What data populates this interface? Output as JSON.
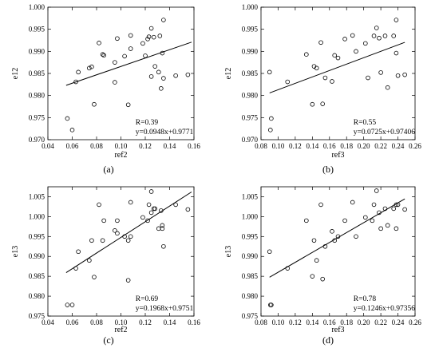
{
  "chart_data": [
    {
      "type": "scatter",
      "panel": "(a)",
      "xlabel": "ref2",
      "ylabel": "e12",
      "xlim": [
        0.04,
        0.16
      ],
      "ylim": [
        0.97,
        1.0
      ],
      "xticks": [
        "0.04",
        "0.06",
        "0.08",
        "0.10",
        "0.12",
        "0.14",
        "0.16"
      ],
      "yticks": [
        "0.970",
        "0.975",
        "0.980",
        "0.985",
        "0.990",
        "0.995",
        "1.000"
      ],
      "annotation_r": "R=0.39",
      "annotation_eq": "y=0.0948x+0.9771",
      "fit": {
        "slope": 0.0948,
        "intercept": 0.9771,
        "x_range": [
          0.055,
          0.158
        ]
      },
      "points": [
        [
          0.056,
          0.9748
        ],
        [
          0.06,
          0.9722
        ],
        [
          0.063,
          0.9831
        ],
        [
          0.065,
          0.9853
        ],
        [
          0.074,
          0.9862
        ],
        [
          0.076,
          0.9865
        ],
        [
          0.078,
          0.978
        ],
        [
          0.082,
          0.9919
        ],
        [
          0.085,
          0.9893
        ],
        [
          0.086,
          0.9891
        ],
        [
          0.095,
          0.983
        ],
        [
          0.095,
          0.9875
        ],
        [
          0.097,
          0.9929
        ],
        [
          0.103,
          0.9889
        ],
        [
          0.106,
          0.9779
        ],
        [
          0.108,
          0.9936
        ],
        [
          0.108,
          0.9906
        ],
        [
          0.118,
          0.9918
        ],
        [
          0.12,
          0.989
        ],
        [
          0.122,
          0.9928
        ],
        [
          0.123,
          0.9933
        ],
        [
          0.125,
          0.9952
        ],
        [
          0.125,
          0.9843
        ],
        [
          0.127,
          0.9932
        ],
        [
          0.128,
          0.9866
        ],
        [
          0.131,
          0.9853
        ],
        [
          0.132,
          0.9935
        ],
        [
          0.133,
          0.9816
        ],
        [
          0.134,
          0.9896
        ],
        [
          0.135,
          0.9971
        ],
        [
          0.135,
          0.9839
        ],
        [
          0.145,
          0.9845
        ],
        [
          0.155,
          0.9847
        ]
      ]
    },
    {
      "type": "scatter",
      "panel": "(b)",
      "xlabel": "ref3",
      "ylabel": "e12",
      "xlim": [
        0.08,
        0.26
      ],
      "ylim": [
        0.97,
        1.0
      ],
      "xticks": [
        "0.08",
        "0.10",
        "0.12",
        "0.14",
        "0.16",
        "0.18",
        "0.20",
        "0.22",
        "0.24",
        "0.26"
      ],
      "yticks": [
        "0.970",
        "0.975",
        "0.980",
        "0.985",
        "0.990",
        "0.995",
        "1.000"
      ],
      "annotation_r": "R=0.55",
      "annotation_eq": "y=0.0725x+0.97406",
      "fit": {
        "slope": 0.0725,
        "intercept": 0.97406,
        "x_range": [
          0.09,
          0.248
        ]
      },
      "points": [
        [
          0.09,
          0.9853
        ],
        [
          0.092,
          0.9748
        ],
        [
          0.091,
          0.9722
        ],
        [
          0.111,
          0.9831
        ],
        [
          0.133,
          0.9893
        ],
        [
          0.14,
          0.978
        ],
        [
          0.142,
          0.9866
        ],
        [
          0.145,
          0.9862
        ],
        [
          0.15,
          0.992
        ],
        [
          0.152,
          0.9781
        ],
        [
          0.155,
          0.984
        ],
        [
          0.163,
          0.9832
        ],
        [
          0.166,
          0.9891
        ],
        [
          0.17,
          0.9885
        ],
        [
          0.178,
          0.9928
        ],
        [
          0.187,
          0.9936
        ],
        [
          0.191,
          0.99
        ],
        [
          0.202,
          0.9918
        ],
        [
          0.205,
          0.984
        ],
        [
          0.212,
          0.9935
        ],
        [
          0.215,
          0.9953
        ],
        [
          0.218,
          0.993
        ],
        [
          0.22,
          0.9852
        ],
        [
          0.225,
          0.9935
        ],
        [
          0.228,
          0.9818
        ],
        [
          0.235,
          0.9935
        ],
        [
          0.238,
          0.9971
        ],
        [
          0.238,
          0.9896
        ],
        [
          0.24,
          0.9845
        ],
        [
          0.248,
          0.9847
        ]
      ]
    },
    {
      "type": "scatter",
      "panel": "(c)",
      "xlabel": "ref2",
      "ylabel": "e13",
      "xlim": [
        0.04,
        0.16
      ],
      "ylim": [
        0.975,
        1.0075
      ],
      "xticks": [
        "0.04",
        "0.06",
        "0.08",
        "0.10",
        "0.12",
        "0.14",
        "0.16"
      ],
      "yticks": [
        "0.975",
        "0.980",
        "0.985",
        "0.990",
        "0.995",
        "1.000",
        "1.005"
      ],
      "annotation_r": "R=0.69",
      "annotation_eq": "y=0.1968x+0.9751",
      "fit": {
        "slope": 0.1968,
        "intercept": 0.9751,
        "x_range": [
          0.055,
          0.158
        ]
      },
      "points": [
        [
          0.056,
          0.9778
        ],
        [
          0.06,
          0.9778
        ],
        [
          0.063,
          0.987
        ],
        [
          0.065,
          0.9912
        ],
        [
          0.074,
          0.989
        ],
        [
          0.076,
          0.994
        ],
        [
          0.078,
          0.9848
        ],
        [
          0.082,
          1.003
        ],
        [
          0.085,
          0.994
        ],
        [
          0.086,
          0.999
        ],
        [
          0.095,
          0.9965
        ],
        [
          0.097,
          0.999
        ],
        [
          0.097,
          0.9958
        ],
        [
          0.103,
          0.995
        ],
        [
          0.106,
          0.984
        ],
        [
          0.106,
          0.994
        ],
        [
          0.108,
          1.0036
        ],
        [
          0.108,
          0.995
        ],
        [
          0.118,
          0.9998
        ],
        [
          0.122,
          0.999
        ],
        [
          0.123,
          1.003
        ],
        [
          0.125,
          1.0063
        ],
        [
          0.125,
          1.001
        ],
        [
          0.127,
          1.002
        ],
        [
          0.128,
          1.002
        ],
        [
          0.131,
          0.997
        ],
        [
          0.133,
          1.0015
        ],
        [
          0.134,
          0.997
        ],
        [
          0.134,
          0.9978
        ],
        [
          0.135,
          0.9925
        ],
        [
          0.145,
          1.003
        ],
        [
          0.155,
          1.0018
        ]
      ]
    },
    {
      "type": "scatter",
      "panel": "(d)",
      "xlabel": "ref3",
      "ylabel": "e13",
      "xlim": [
        0.08,
        0.26
      ],
      "ylim": [
        0.975,
        1.0075
      ],
      "xticks": [
        "0.08",
        "0.10",
        "0.12",
        "0.14",
        "0.16",
        "0.18",
        "0.20",
        "0.22",
        "0.24",
        "0.26"
      ],
      "yticks": [
        "0.975",
        "0.980",
        "0.985",
        "0.990",
        "0.995",
        "1.000",
        "1.005"
      ],
      "annotation_r": "R=0.78",
      "annotation_eq": "y=0.1246x+0.97356",
      "fit": {
        "slope": 0.1246,
        "intercept": 0.97356,
        "x_range": [
          0.09,
          0.248
        ]
      },
      "points": [
        [
          0.09,
          0.9912
        ],
        [
          0.091,
          0.9778
        ],
        [
          0.092,
          0.9778
        ],
        [
          0.111,
          0.987
        ],
        [
          0.133,
          0.999
        ],
        [
          0.14,
          0.985
        ],
        [
          0.142,
          0.994
        ],
        [
          0.145,
          0.989
        ],
        [
          0.15,
          1.003
        ],
        [
          0.152,
          0.9843
        ],
        [
          0.155,
          0.9925
        ],
        [
          0.163,
          0.9963
        ],
        [
          0.166,
          0.994
        ],
        [
          0.17,
          0.995
        ],
        [
          0.178,
          0.999
        ],
        [
          0.187,
          1.0036
        ],
        [
          0.191,
          0.995
        ],
        [
          0.202,
          0.9998
        ],
        [
          0.21,
          0.999
        ],
        [
          0.212,
          1.003
        ],
        [
          0.215,
          1.0065
        ],
        [
          0.218,
          1.001
        ],
        [
          0.22,
          0.997
        ],
        [
          0.225,
          1.002
        ],
        [
          0.228,
          0.9978
        ],
        [
          0.235,
          1.002
        ],
        [
          0.238,
          1.003
        ],
        [
          0.238,
          0.997
        ],
        [
          0.24,
          1.003
        ],
        [
          0.248,
          1.0018
        ]
      ]
    }
  ]
}
